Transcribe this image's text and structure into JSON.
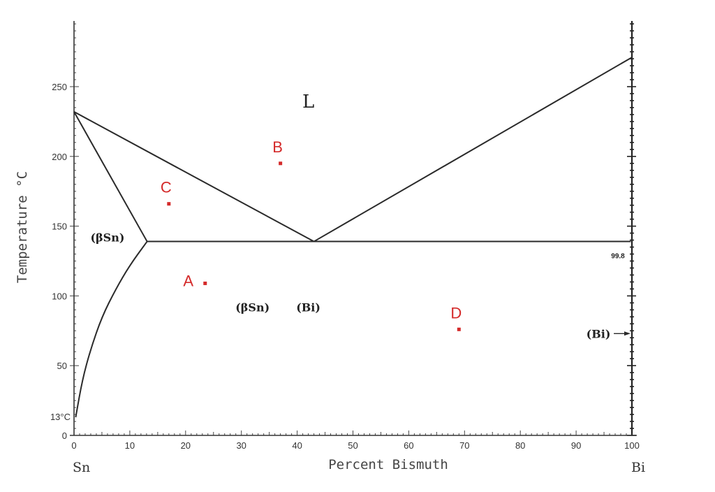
{
  "chart_data": {
    "type": "line",
    "title": "",
    "xlabel": "Percent Bismuth",
    "ylabel": "Temperature °C",
    "xlim": [
      0,
      100
    ],
    "ylim": [
      0,
      300
    ],
    "x_ticks": [
      0,
      10,
      20,
      30,
      40,
      50,
      60,
      70,
      80,
      90,
      100
    ],
    "y_ticks": [
      0,
      50,
      100,
      150,
      200,
      250
    ],
    "grid": false,
    "left_element": "Sn",
    "right_element": "Bi",
    "series": [
      {
        "name": "liquidus-Sn-side",
        "x": [
          0,
          43
        ],
        "y": [
          232,
          139
        ]
      },
      {
        "name": "liquidus-Bi-side",
        "x": [
          43,
          100
        ],
        "y": [
          139,
          271
        ]
      },
      {
        "name": "solidus-betaSn",
        "x": [
          0,
          13.1
        ],
        "y": [
          232,
          139
        ]
      },
      {
        "name": "eutectic-isotherm",
        "x": [
          13.1,
          43,
          99.8
        ],
        "y": [
          139,
          139,
          139
        ]
      },
      {
        "name": "solvus-betaSn",
        "x": [
          0.3,
          1.5,
          3,
          5,
          7.5,
          10,
          13.1
        ],
        "y": [
          13,
          40,
          62,
          85,
          105,
          122,
          139
        ]
      }
    ],
    "phase_labels": [
      {
        "text": "L",
        "x": 42,
        "y": 235
      },
      {
        "text": "(βSn)",
        "x": 6,
        "y": 139
      },
      {
        "text": "(βSn)",
        "x": 32,
        "y": 89
      },
      {
        "text": "(Bi)",
        "x": 42,
        "y": 89
      },
      {
        "text": "(Bi)",
        "x": 94,
        "y": 70
      }
    ],
    "annotations": [
      {
        "text": "13°C",
        "x": 0,
        "y": 13
      },
      {
        "text": "99.8",
        "x": 97.5,
        "y": 133
      }
    ],
    "points": [
      {
        "label": "A",
        "x": 23.5,
        "y": 109
      },
      {
        "label": "B",
        "x": 37,
        "y": 195
      },
      {
        "label": "C",
        "x": 17,
        "y": 166
      },
      {
        "label": "D",
        "x": 69,
        "y": 76
      }
    ],
    "colors": {
      "lines": "#2a2a2a",
      "points": "#d42a2a"
    }
  }
}
